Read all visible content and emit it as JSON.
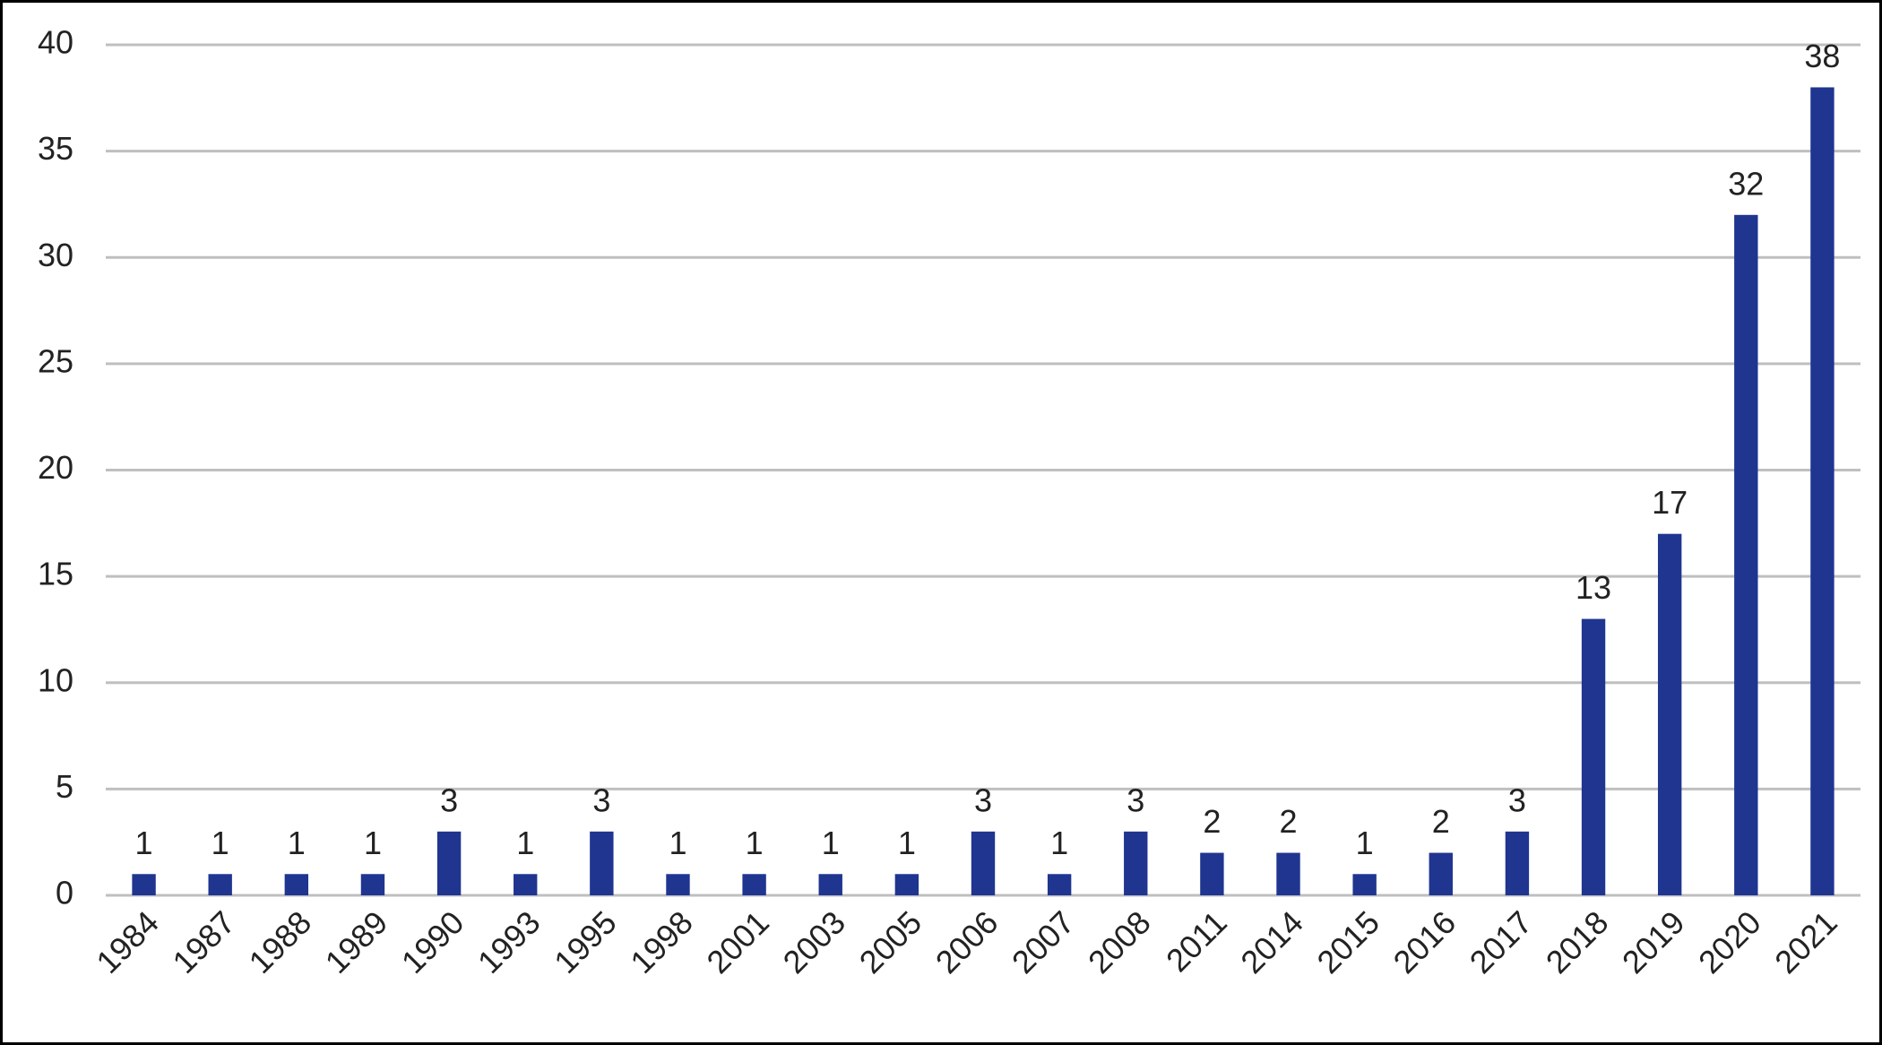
{
  "chart_data": {
    "type": "bar",
    "categories": [
      "1984",
      "1987",
      "1988",
      "1989",
      "1990",
      "1993",
      "1995",
      "1998",
      "2001",
      "2003",
      "2005",
      "2006",
      "2007",
      "2008",
      "2011",
      "2014",
      "2015",
      "2016",
      "2017",
      "2018",
      "2019",
      "2020",
      "2021"
    ],
    "values": [
      1,
      1,
      1,
      1,
      3,
      1,
      3,
      1,
      1,
      1,
      1,
      3,
      1,
      3,
      2,
      2,
      1,
      2,
      3,
      13,
      17,
      32,
      38
    ],
    "color": "#1f3590",
    "ylim": [
      0,
      40
    ],
    "yticks": [
      0,
      5,
      10,
      15,
      20,
      25,
      30,
      35,
      40
    ],
    "grid": true,
    "data_labels": true
  }
}
